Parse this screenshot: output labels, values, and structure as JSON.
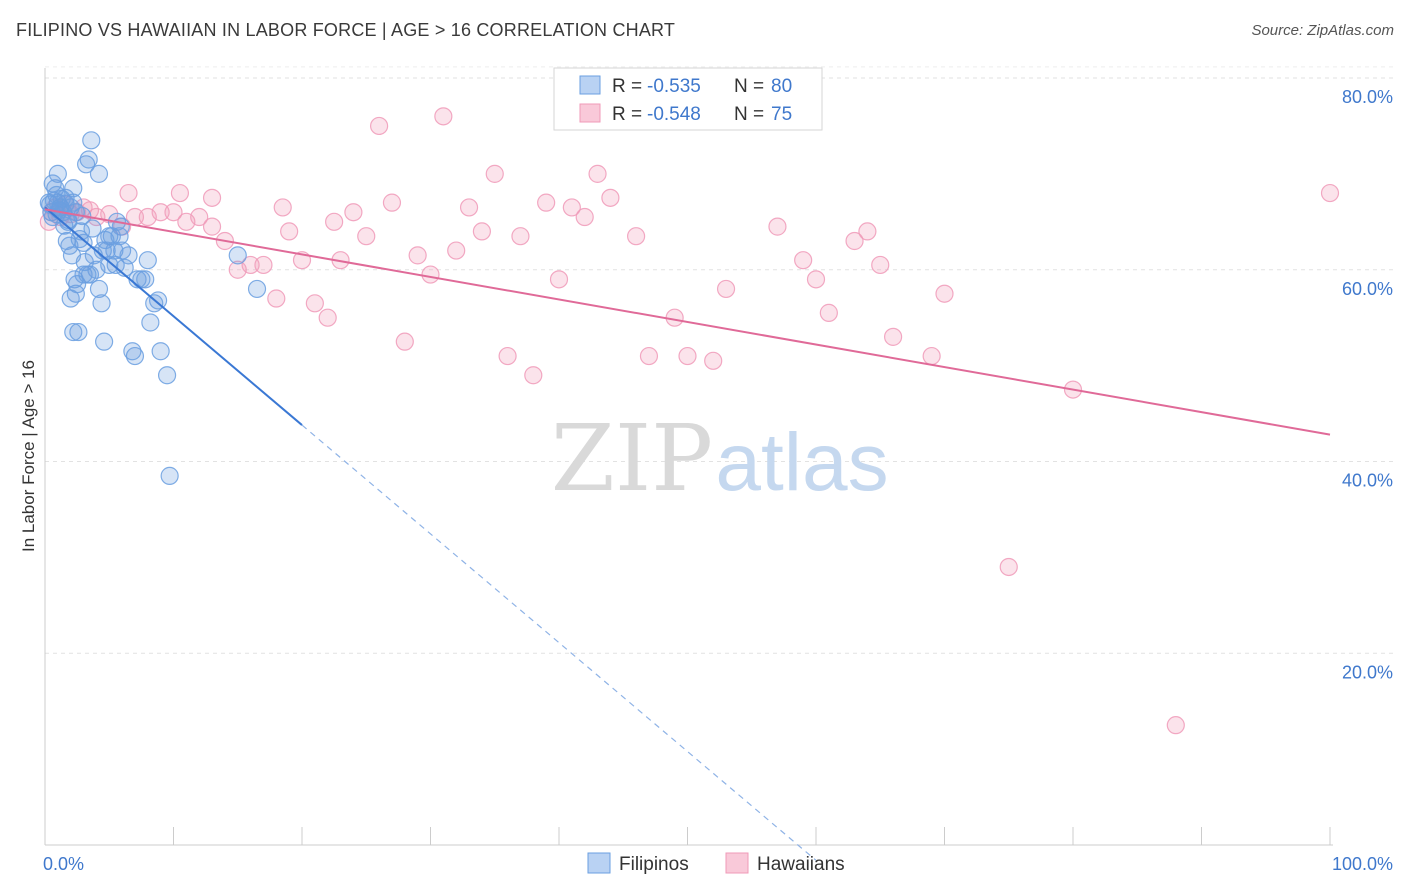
{
  "title": "FILIPINO VS HAWAIIAN IN LABOR FORCE | AGE > 16 CORRELATION CHART",
  "source": "Source: ZipAtlas.com",
  "watermark": {
    "zip": "ZIP",
    "atlas": "atlas"
  },
  "chart_data": {
    "type": "scatter",
    "ylabel": "In Labor Force | Age > 16",
    "xlim": [
      0,
      100
    ],
    "ylim": [
      0,
      82
    ],
    "x_tick_labels": {
      "left": "0.0%",
      "right": "100.0%"
    },
    "y_ticks": [
      {
        "value": 20,
        "label": "20.0%"
      },
      {
        "value": 40,
        "label": "40.0%"
      },
      {
        "value": 60,
        "label": "60.0%"
      },
      {
        "value": 80,
        "label": "80.0%"
      }
    ],
    "legend": [
      {
        "r_label": "R =",
        "r_value": "-0.535",
        "n_label": "N =",
        "n_value": "80"
      },
      {
        "r_label": "R =",
        "r_value": "-0.548",
        "n_label": "N =",
        "n_value": "75"
      }
    ],
    "series": [
      {
        "name": "Filipinos",
        "color": "#6a9fe0",
        "line_color": "#3a78d4",
        "trend": {
          "x0": 0,
          "y0": 66.5,
          "x1": 20,
          "y1": 43.8,
          "dash_to_x": 60
        },
        "points": [
          [
            0.3,
            67
          ],
          [
            0.5,
            66
          ],
          [
            0.6,
            65.5
          ],
          [
            0.8,
            68.5
          ],
          [
            1,
            67
          ],
          [
            1.2,
            66.5
          ],
          [
            1.4,
            66
          ],
          [
            1.6,
            67.5
          ],
          [
            1.8,
            65
          ],
          [
            2,
            66.5
          ],
          [
            2.2,
            67
          ],
          [
            2.4,
            66
          ],
          [
            0.4,
            66.8
          ],
          [
            0.7,
            67.2
          ],
          [
            0.9,
            65.8
          ],
          [
            1.1,
            66.2
          ],
          [
            1.3,
            67.4
          ],
          [
            1.5,
            64.6
          ],
          [
            1.7,
            63
          ],
          [
            1.9,
            62.5
          ],
          [
            2.1,
            61.5
          ],
          [
            2.3,
            59
          ],
          [
            2.5,
            58.5
          ],
          [
            2.8,
            64
          ],
          [
            3,
            62.8
          ],
          [
            3.2,
            71
          ],
          [
            3.4,
            71.5
          ],
          [
            3.6,
            73.5
          ],
          [
            3.8,
            61.5
          ],
          [
            4,
            60
          ],
          [
            4.2,
            58
          ],
          [
            4.4,
            56.5
          ],
          [
            4.6,
            52.5
          ],
          [
            4.8,
            62
          ],
          [
            5,
            60.5
          ],
          [
            5.2,
            63.5
          ],
          [
            5.4,
            62
          ],
          [
            5.6,
            65
          ],
          [
            5.8,
            63.5
          ],
          [
            6,
            62
          ],
          [
            2,
            57
          ],
          [
            2.2,
            53.5
          ],
          [
            2.6,
            53.5
          ],
          [
            3,
            59.5
          ],
          [
            3.5,
            59.5
          ],
          [
            4.2,
            70
          ],
          [
            2.2,
            68.5
          ],
          [
            1,
            70
          ],
          [
            0.6,
            69
          ],
          [
            5,
            63.5
          ],
          [
            5.5,
            60.5
          ],
          [
            6.5,
            61.5
          ],
          [
            7,
            51
          ],
          [
            7.2,
            59
          ],
          [
            7.5,
            59
          ],
          [
            8,
            61
          ],
          [
            8.2,
            54.5
          ],
          [
            8.5,
            56.5
          ],
          [
            8.8,
            56.8
          ],
          [
            9,
            51.5
          ],
          [
            9.5,
            49
          ],
          [
            9.7,
            38.5
          ],
          [
            15,
            61.5
          ],
          [
            16.5,
            58
          ],
          [
            6.8,
            51.5
          ],
          [
            4.5,
            62
          ],
          [
            3.3,
            59.5
          ],
          [
            2.7,
            63.2
          ],
          [
            1.2,
            66.5
          ],
          [
            0.9,
            67.8
          ],
          [
            1.6,
            66.9
          ],
          [
            2.9,
            65.6
          ],
          [
            3.7,
            64.3
          ],
          [
            4.7,
            63.1
          ],
          [
            5.9,
            64.5
          ],
          [
            6.2,
            60.2
          ],
          [
            7.8,
            59
          ],
          [
            3.1,
            60.8
          ],
          [
            2.4,
            57.5
          ],
          [
            1.8,
            65.2
          ]
        ]
      },
      {
        "name": "Hawaiians",
        "color": "#f09ab8",
        "line_color": "#e06a98",
        "trend": {
          "x0": 0,
          "y0": 66.3,
          "x1": 100,
          "y1": 42.8
        },
        "points": [
          [
            0.3,
            65
          ],
          [
            0.5,
            66
          ],
          [
            0.8,
            66.5
          ],
          [
            1.2,
            65.5
          ],
          [
            1.6,
            66.8
          ],
          [
            2,
            65.8
          ],
          [
            2.5,
            66
          ],
          [
            3,
            66.5
          ],
          [
            3.5,
            66.2
          ],
          [
            4,
            65.5
          ],
          [
            5,
            65.8
          ],
          [
            6,
            64.5
          ],
          [
            7,
            65.5
          ],
          [
            8,
            65.5
          ],
          [
            9,
            66
          ],
          [
            10,
            66
          ],
          [
            11,
            65
          ],
          [
            12,
            65.5
          ],
          [
            13,
            64.5
          ],
          [
            14,
            63
          ],
          [
            15,
            60
          ],
          [
            16,
            60.5
          ],
          [
            17,
            60.5
          ],
          [
            18,
            57
          ],
          [
            19,
            64
          ],
          [
            20,
            61
          ],
          [
            21,
            56.5
          ],
          [
            22,
            55
          ],
          [
            23,
            61
          ],
          [
            24,
            66
          ],
          [
            25,
            63.5
          ],
          [
            26,
            75
          ],
          [
            27,
            67
          ],
          [
            28,
            52.5
          ],
          [
            29,
            61.5
          ],
          [
            30,
            59.5
          ],
          [
            31,
            76
          ],
          [
            32,
            62
          ],
          [
            33,
            66.5
          ],
          [
            34,
            64
          ],
          [
            35,
            70
          ],
          [
            36,
            51
          ],
          [
            37,
            63.5
          ],
          [
            38,
            49
          ],
          [
            39,
            67
          ],
          [
            40,
            59
          ],
          [
            41,
            66.5
          ],
          [
            42,
            65.5
          ],
          [
            43,
            70
          ],
          [
            44,
            67.5
          ],
          [
            46,
            63.5
          ],
          [
            47,
            51
          ],
          [
            49,
            55
          ],
          [
            50,
            51
          ],
          [
            52,
            50.5
          ],
          [
            53,
            58
          ],
          [
            57,
            64.5
          ],
          [
            59,
            61
          ],
          [
            60,
            59
          ],
          [
            61,
            55.5
          ],
          [
            63,
            63
          ],
          [
            64,
            64
          ],
          [
            65,
            60.5
          ],
          [
            66,
            53
          ],
          [
            69,
            51
          ],
          [
            70,
            57.5
          ],
          [
            75,
            29
          ],
          [
            80,
            47.5
          ],
          [
            88,
            12.5
          ],
          [
            100,
            68
          ],
          [
            6.5,
            68
          ],
          [
            10.5,
            68
          ],
          [
            13,
            67.5
          ],
          [
            18.5,
            66.5
          ],
          [
            22.5,
            65
          ]
        ]
      }
    ]
  }
}
